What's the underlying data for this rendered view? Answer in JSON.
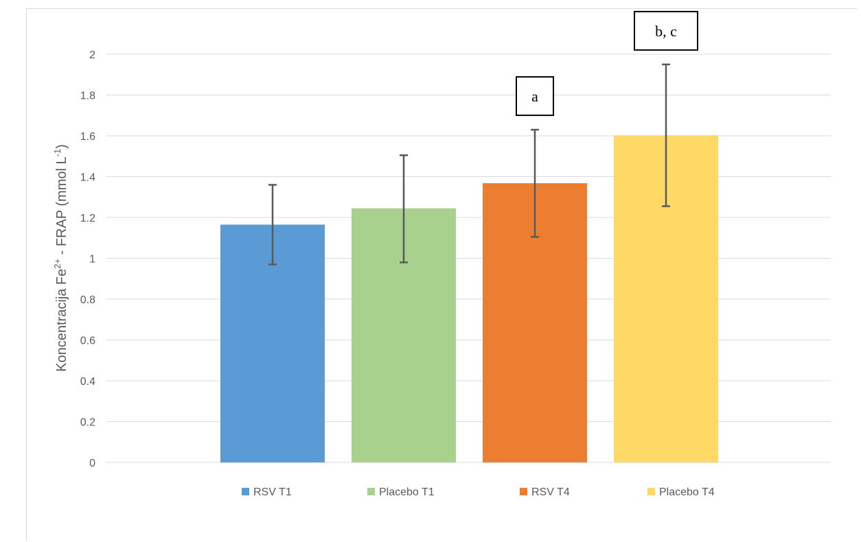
{
  "chart_data": {
    "type": "bar",
    "title": "",
    "xlabel": "",
    "ylabel_main": "Koncentracija Fe",
    "ylabel_sup1": "2+",
    "ylabel_mid": " - FRAP (mmol L",
    "ylabel_sup2": "-1",
    "ylabel_end": ")",
    "ylim": [
      0,
      2
    ],
    "yticks": [
      0,
      0.2,
      0.4,
      0.6,
      0.8,
      1,
      1.2,
      1.4,
      1.6,
      1.8,
      2
    ],
    "ytick_labels": [
      "0",
      "0.2",
      "0.4",
      "0.6",
      "0.8",
      "1",
      "1.2",
      "1.4",
      "1.6",
      "1.8",
      "2"
    ],
    "grid": true,
    "legend_position": "bottom",
    "categories": [
      "RSV T1",
      "Placebo T1",
      "RSV T4",
      "Placebo T4"
    ],
    "values": [
      1.165,
      1.245,
      1.368,
      1.603
    ],
    "error_low": [
      0.97,
      0.98,
      1.105,
      1.255
    ],
    "error_high": [
      1.36,
      1.505,
      1.63,
      1.95
    ],
    "colors": [
      "#5B9BD5",
      "#A9D18E",
      "#ED7D31",
      "#FFD966"
    ],
    "annotations": [
      {
        "category": "RSV T4",
        "text": "a"
      },
      {
        "category": "Placebo T4",
        "text": "b, c"
      }
    ]
  }
}
